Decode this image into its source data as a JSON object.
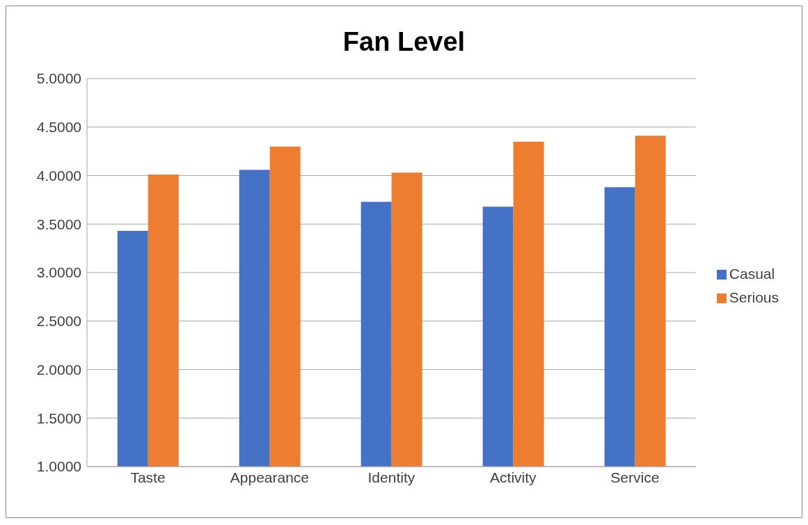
{
  "chart_data": {
    "type": "bar",
    "title": "Fan Level",
    "categories": [
      "Taste",
      "Appearance",
      "Identity",
      "Activity",
      "Service"
    ],
    "series": [
      {
        "name": "Casual",
        "color": "#4472c4",
        "values": [
          3.43,
          4.06,
          3.73,
          3.68,
          3.88
        ]
      },
      {
        "name": "Serious",
        "color": "#ed7d31",
        "values": [
          4.01,
          4.3,
          4.03,
          4.35,
          4.41
        ]
      }
    ],
    "ylim": [
      1,
      5
    ],
    "yticks": [
      {
        "value": 1,
        "label": "1.0000"
      },
      {
        "value": 1.5,
        "label": "1.5000"
      },
      {
        "value": 2,
        "label": "2.0000"
      },
      {
        "value": 2.5,
        "label": "2.5000"
      },
      {
        "value": 3,
        "label": "3.0000"
      },
      {
        "value": 3.5,
        "label": "3.5000"
      },
      {
        "value": 4,
        "label": "4.0000"
      },
      {
        "value": 4.5,
        "label": "4.5000"
      },
      {
        "value": 5,
        "label": "5.0000"
      }
    ],
    "grid": "y",
    "legend": "right"
  }
}
